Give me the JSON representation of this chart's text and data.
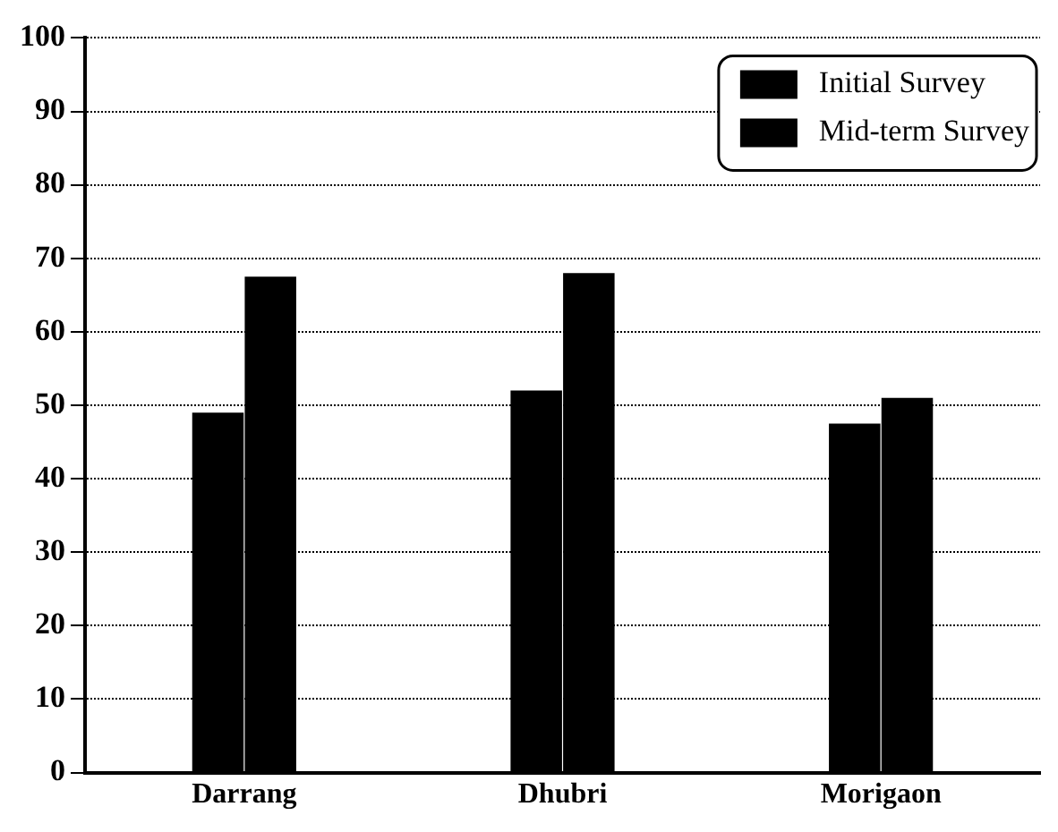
{
  "chart_data": {
    "type": "bar",
    "categories": [
      "Darrang",
      "Dhubri",
      "Morigaon"
    ],
    "series": [
      {
        "name": "Initial Survey",
        "color": "#000000",
        "values": [
          49,
          52,
          47.5
        ]
      },
      {
        "name": "Mid-term Survey",
        "color": "#000000",
        "values": [
          67.5,
          68,
          51
        ]
      }
    ],
    "ylim": [
      0,
      100
    ],
    "yticks": [
      0,
      10,
      20,
      30,
      40,
      50,
      60,
      70,
      80,
      90,
      100
    ],
    "grid": "y",
    "legend": "top right"
  }
}
